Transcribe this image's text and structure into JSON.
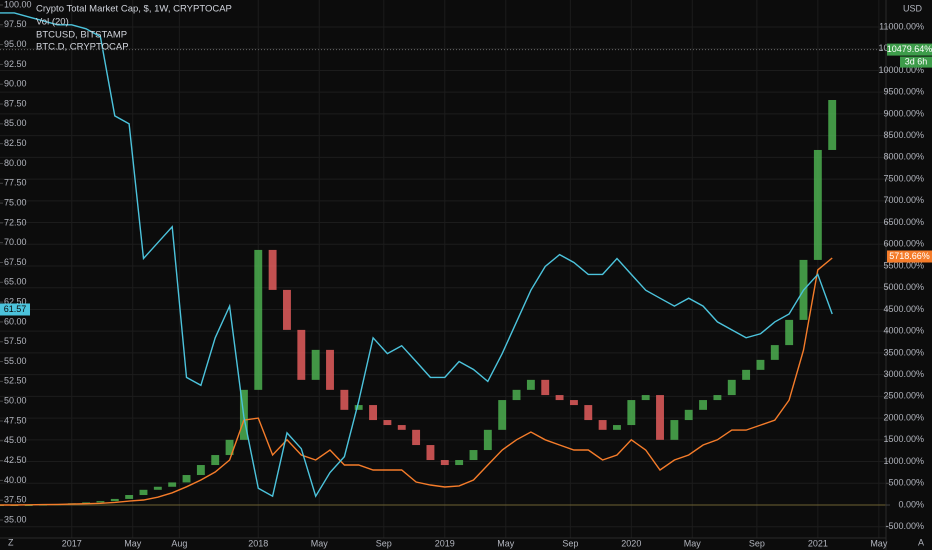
{
  "chart_data": {
    "type": "candlestick",
    "title": "Crypto Total Market Cap, $, 1W, CRYPTOCAP",
    "indicator": "Vol (20)",
    "x": [
      -20,
      -16,
      -12,
      -8,
      -4,
      0,
      4,
      8,
      12,
      16,
      20,
      24,
      28,
      32,
      36,
      40,
      44,
      48,
      52,
      56,
      60,
      64,
      68,
      72,
      76,
      80,
      84,
      88,
      92,
      96,
      100,
      104,
      108,
      112,
      116,
      120,
      124,
      128,
      132,
      136,
      140,
      144,
      148,
      152,
      156,
      160,
      164,
      168,
      172,
      176,
      180,
      184,
      188,
      192,
      196,
      200,
      204,
      208,
      212
    ],
    "xlim": [
      -20,
      227
    ],
    "xticks": [
      {
        "value": 0,
        "label": "2017"
      },
      {
        "value": 17,
        "label": "May"
      },
      {
        "value": 30,
        "label": "Aug"
      },
      {
        "value": 52,
        "label": "2018"
      },
      {
        "value": 69,
        "label": "May"
      },
      {
        "value": 87,
        "label": "Sep"
      },
      {
        "value": 104,
        "label": "2019"
      },
      {
        "value": 121,
        "label": "May"
      },
      {
        "value": 139,
        "label": "Sep"
      },
      {
        "value": 156,
        "label": "2020"
      },
      {
        "value": 173,
        "label": "May"
      },
      {
        "value": 191,
        "label": "Sep"
      },
      {
        "value": 208,
        "label": "2021"
      },
      {
        "value": 225,
        "label": "May"
      }
    ],
    "ylim": [
      32.73,
      100.63
    ],
    "yticks": [
      {
        "value": 35,
        "label": "35.00"
      },
      {
        "value": 37.5,
        "label": "37.50"
      },
      {
        "value": 40,
        "label": "40.00"
      },
      {
        "value": 42.5,
        "label": "42.50"
      },
      {
        "value": 45,
        "label": "45.00"
      },
      {
        "value": 47.5,
        "label": "47.50"
      },
      {
        "value": 50,
        "label": "50.00"
      },
      {
        "value": 52.5,
        "label": "52.50"
      },
      {
        "value": 55,
        "label": "55.00"
      },
      {
        "value": 57.5,
        "label": "57.50"
      },
      {
        "value": 60,
        "label": "60.00"
      },
      {
        "value": 62.5,
        "label": "62.50"
      },
      {
        "value": 65,
        "label": "65.00"
      },
      {
        "value": 67.5,
        "label": "67.50"
      },
      {
        "value": 70,
        "label": "70.00"
      },
      {
        "value": 72.5,
        "label": "72.50"
      },
      {
        "value": 75,
        "label": "75.00"
      },
      {
        "value": 77.5,
        "label": "77.50"
      },
      {
        "value": 80,
        "label": "80.00"
      },
      {
        "value": 82.5,
        "label": "82.50"
      },
      {
        "value": 85,
        "label": "85.00"
      },
      {
        "value": 87.5,
        "label": "87.50"
      },
      {
        "value": 90,
        "label": "90.00"
      },
      {
        "value": 92.5,
        "label": "92.50"
      },
      {
        "value": 95,
        "label": "95.00"
      },
      {
        "value": 97.5,
        "label": "97.50"
      },
      {
        "value": 100,
        "label": "100.00"
      }
    ],
    "y2lim": [
      -759,
      11621
    ],
    "y2ticks": [
      {
        "value": -500,
        "label": "-500.00%"
      },
      {
        "value": 0,
        "label": "0.00%"
      },
      {
        "value": 500,
        "label": "500.00%"
      },
      {
        "value": 1000,
        "label": "1000.00%"
      },
      {
        "value": 1500,
        "label": "1500.00%"
      },
      {
        "value": 2000,
        "label": "2000.00%"
      },
      {
        "value": 2500,
        "label": "2500.00%"
      },
      {
        "value": 3000,
        "label": "3000.00%"
      },
      {
        "value": 3500,
        "label": "3500.00%"
      },
      {
        "value": 4000,
        "label": "4000.00%"
      },
      {
        "value": 4500,
        "label": "4500.00%"
      },
      {
        "value": 5000,
        "label": "5000.00%"
      },
      {
        "value": 5500,
        "label": "5500.00%"
      },
      {
        "value": 6000,
        "label": "6000.00%"
      },
      {
        "value": 6500,
        "label": "6500.00%"
      },
      {
        "value": 7000,
        "label": "7000.00%"
      },
      {
        "value": 7500,
        "label": "7500.00%"
      },
      {
        "value": 8000,
        "label": "8000.00%"
      },
      {
        "value": 8500,
        "label": "8500.00%"
      },
      {
        "value": 9000,
        "label": "9000.00%"
      },
      {
        "value": 9500,
        "label": "9500.00%"
      },
      {
        "value": 10000,
        "label": "10000.00%"
      },
      {
        "value": 10500,
        "label": "10500.00%"
      },
      {
        "value": 11000,
        "label": "11000.00%"
      }
    ],
    "y2_unit": "USD",
    "grid": true,
    "candles": {
      "axis": "y2",
      "up_color": "#4caf50",
      "down_color": "#e35d5d",
      "open": [
        0,
        0,
        0,
        0,
        10,
        20,
        40,
        60,
        90,
        140,
        230,
        350,
        420,
        520,
        690,
        920,
        1150,
        1500,
        2650,
        5870,
        4950,
        4030,
        2880,
        3570,
        2650,
        2190,
        2300,
        1955,
        1840,
        1730,
        1380,
        1035,
        920,
        1035,
        1265,
        1730,
        2415,
        2650,
        2880,
        2530,
        2415,
        2300,
        1955,
        1730,
        1840,
        2415,
        2530,
        1500,
        1955,
        2190,
        2415,
        2530,
        2880,
        3110,
        3340,
        3680,
        4260,
        5640,
        8170
      ],
      "close": [
        0,
        0,
        0,
        10,
        20,
        40,
        60,
        90,
        140,
        230,
        350,
        420,
        520,
        690,
        920,
        1150,
        1500,
        2650,
        5870,
        4950,
        4030,
        2880,
        3570,
        2650,
        2190,
        2300,
        1955,
        1840,
        1730,
        1380,
        1035,
        920,
        1035,
        1265,
        1730,
        2415,
        2650,
        2880,
        2530,
        2415,
        2300,
        1955,
        1730,
        1840,
        2415,
        2530,
        1500,
        1955,
        2190,
        2415,
        2530,
        2880,
        3110,
        3340,
        3680,
        4260,
        5640,
        8170,
        9320
      ],
      "last": {
        "value": 10479.64,
        "label": "10479.64%"
      },
      "countdown": "3d 6h"
    },
    "series": [
      {
        "name": "BTCUSD, BITSTAMP",
        "color": "#f57c2a",
        "axis": "y2",
        "values": [
          0,
          0,
          5,
          10,
          15,
          20,
          30,
          40,
          60,
          90,
          115,
          180,
          280,
          420,
          575,
          760,
          1035,
          1955,
          2000,
          1150,
          1500,
          1150,
          1035,
          1265,
          920,
          920,
          805,
          805,
          805,
          530,
          460,
          415,
          440,
          575,
          920,
          1265,
          1500,
          1680,
          1500,
          1380,
          1265,
          1265,
          1035,
          1150,
          1500,
          1265,
          805,
          1035,
          1150,
          1380,
          1500,
          1725,
          1725,
          1840,
          1955,
          2415,
          3565,
          5410,
          5685
        ],
        "last": {
          "value": 5718.66,
          "label": "5718.66%"
        }
      },
      {
        "name": "BTC.D, CRYPTOCAP",
        "color": "#4cc3dc",
        "axis": "y",
        "values": [
          99,
          99,
          98.5,
          98,
          97.5,
          97.5,
          97,
          96,
          86,
          85,
          68,
          70,
          72,
          53,
          52,
          58,
          62,
          48,
          39,
          38,
          46,
          44,
          38,
          41,
          43,
          50,
          58,
          56,
          57,
          55,
          53,
          53,
          55,
          54,
          52.5,
          56,
          60,
          64,
          67,
          68.5,
          67.5,
          66,
          66,
          68,
          66,
          64,
          63,
          62,
          63,
          62,
          60,
          59,
          58,
          58.5,
          60,
          61,
          64,
          66,
          61
        ],
        "last": {
          "value": 61.57,
          "label": "61.57"
        }
      }
    ]
  },
  "ui": {
    "left_button": "Z",
    "right_button": "A"
  }
}
